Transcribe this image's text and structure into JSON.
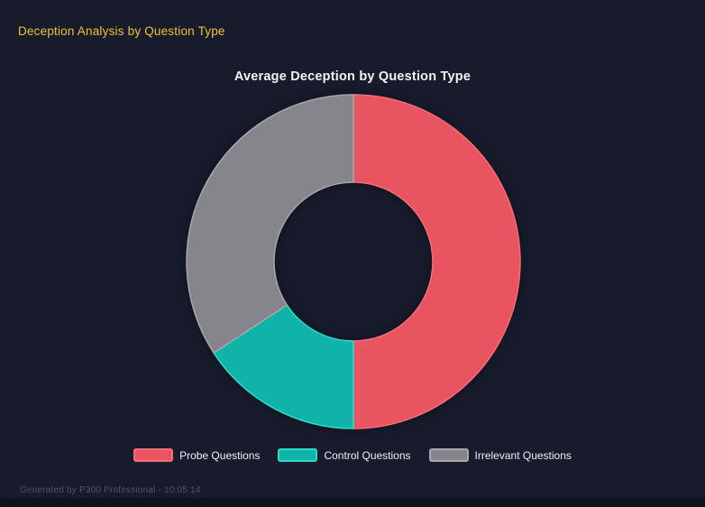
{
  "page": {
    "title": "Deception Analysis by Question Type",
    "footer": "Generated by P300 Professional - 10:05:14"
  },
  "chart_data": {
    "type": "pie",
    "variant": "donut",
    "title": "Average Deception by Question Type",
    "categories": [
      "Probe Questions",
      "Control Questions",
      "Irrelevant Questions"
    ],
    "values": [
      50,
      15.8,
      34.2
    ],
    "unit": "percent_of_circle",
    "colors": [
      "#e8545f",
      "#10b3a8",
      "#86858b"
    ],
    "border_colors": [
      "#f76d76",
      "#2bdccb",
      "#a7a6ac"
    ],
    "legend_position": "bottom",
    "start_angle_deg": 0,
    "direction": "clockwise",
    "cutout_ratio": 0.47,
    "data_labels": false,
    "grid": false
  },
  "colors": {
    "background": "#171b2c",
    "header_title": "#efc32d",
    "chart_title": "#f2f3f5",
    "legend_text": "#eef0f4",
    "footer_text": "#4d5468",
    "footer_bar": "#10141f"
  }
}
